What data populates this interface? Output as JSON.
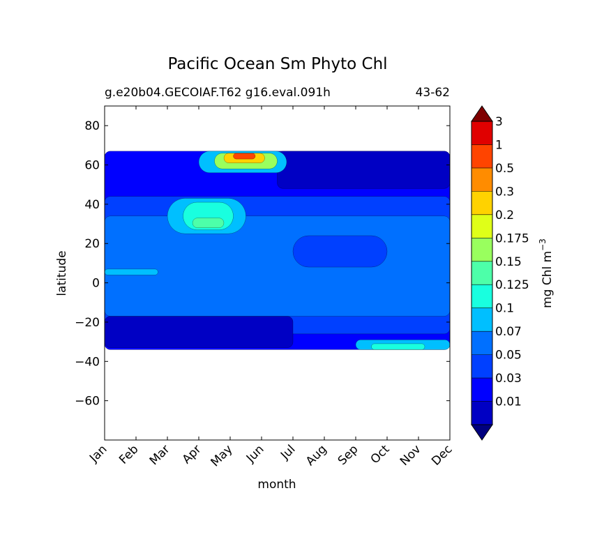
{
  "chart_data": {
    "type": "contourf",
    "title": "Pacific Ocean Sm Phyto Chl",
    "subtitle_left": "g.e20b04.GECOIAF.T62 g16.eval.091h",
    "subtitle_right": "43-62",
    "xlabel": "month",
    "ylabel": "latitude",
    "months": [
      "Jan",
      "Feb",
      "Mar",
      "Apr",
      "May",
      "Jun",
      "Jul",
      "Aug",
      "Sep",
      "Oct",
      "Nov",
      "Dec"
    ],
    "xlim": [
      0.5,
      11.5
    ],
    "ylim": [
      -80,
      90
    ],
    "yticks": [
      80,
      60,
      40,
      20,
      0,
      -20,
      -40,
      -60
    ],
    "data_lat_range": [
      -34,
      67
    ],
    "colorbar": {
      "label": "mg Chl m",
      "label_exponent": "−3",
      "extend": "both",
      "levels": [
        "0.01",
        "0.03",
        "0.05",
        "0.07",
        "0.1",
        "0.125",
        "0.15",
        "0.175",
        "0.2",
        "0.3",
        "0.5",
        "1",
        "3"
      ],
      "colors": [
        "#00007f",
        "#0000c4",
        "#0000ff",
        "#0040ff",
        "#0070ff",
        "#00bfff",
        "#19ffdf",
        "#4dffa9",
        "#99ff5e",
        "#dfff18",
        "#ffd200",
        "#ff8c00",
        "#ff4400",
        "#e00000",
        "#7f0000"
      ]
    },
    "regions": [
      {
        "level": 2,
        "lat": [
          -34,
          67
        ],
        "months": [
          0.5,
          11.5
        ]
      },
      {
        "level": 3,
        "lat": [
          -26,
          44
        ],
        "months": [
          0.5,
          11.5
        ]
      },
      {
        "level": 4,
        "lat": [
          -17,
          34
        ],
        "months": [
          0.5,
          11.5
        ]
      },
      {
        "level": 1,
        "lat": [
          48,
          67
        ],
        "months": [
          6.0,
          11.5
        ]
      },
      {
        "level": 1,
        "lat": [
          -33,
          -17
        ],
        "months": [
          0.5,
          6.5
        ]
      },
      {
        "level": 3,
        "lat": [
          8,
          24
        ],
        "months": [
          6.5,
          9.5
        ]
      },
      {
        "level": 5,
        "lat": [
          25,
          43
        ],
        "months": [
          2.5,
          5.0
        ]
      },
      {
        "level": 6,
        "lat": [
          27,
          41
        ],
        "months": [
          3.0,
          4.6
        ]
      },
      {
        "level": 7,
        "lat": [
          28,
          33
        ],
        "months": [
          3.3,
          4.3
        ]
      },
      {
        "level": 5,
        "lat": [
          4,
          7
        ],
        "months": [
          0.5,
          2.2
        ]
      },
      {
        "level": 5,
        "lat": [
          -34,
          -29
        ],
        "months": [
          8.5,
          11.5
        ]
      },
      {
        "level": 6,
        "lat": [
          -34,
          -31
        ],
        "months": [
          9.0,
          10.7
        ]
      },
      {
        "level": 5,
        "lat": [
          56,
          67
        ],
        "months": [
          3.5,
          6.3
        ]
      },
      {
        "level": 8,
        "lat": [
          58,
          66
        ],
        "months": [
          4.0,
          6.0
        ]
      },
      {
        "level": 10,
        "lat": [
          61,
          66
        ],
        "months": [
          4.3,
          5.6
        ]
      },
      {
        "level": 12,
        "lat": [
          63,
          66
        ],
        "months": [
          4.6,
          5.3
        ]
      }
    ]
  }
}
